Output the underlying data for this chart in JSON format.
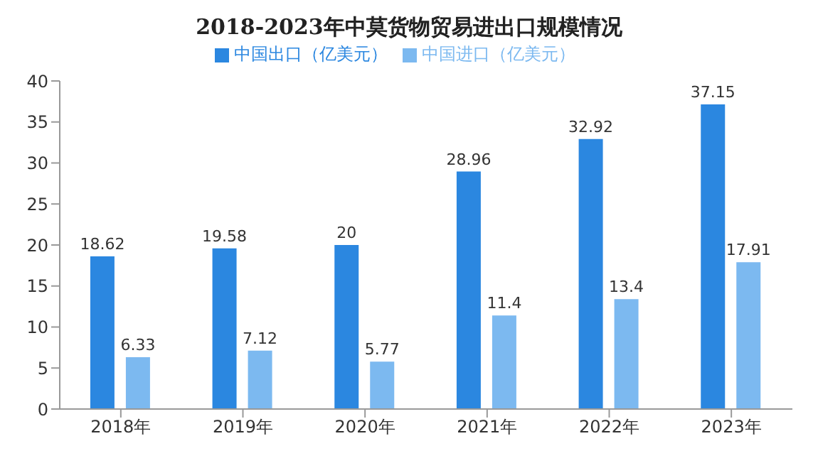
{
  "chart_data": {
    "type": "bar",
    "title": "2018-2023年中莫货物贸易进出口规模情况",
    "categories": [
      "2018年",
      "2019年",
      "2020年",
      "2021年",
      "2022年",
      "2023年"
    ],
    "series": [
      {
        "name": "中国出口（亿美元）",
        "color": "#2b87e0",
        "values": [
          18.62,
          19.58,
          20,
          28.96,
          32.92,
          37.15
        ]
      },
      {
        "name": "中国进口（亿美元）",
        "color": "#7cb9f0",
        "values": [
          6.33,
          7.12,
          5.77,
          11.4,
          13.4,
          17.91
        ]
      }
    ],
    "ylim": [
      0,
      40
    ],
    "yticks": [
      0,
      5,
      10,
      15,
      20,
      25,
      30,
      35,
      40
    ],
    "grid": false,
    "legend": "top",
    "data_labels": true
  }
}
